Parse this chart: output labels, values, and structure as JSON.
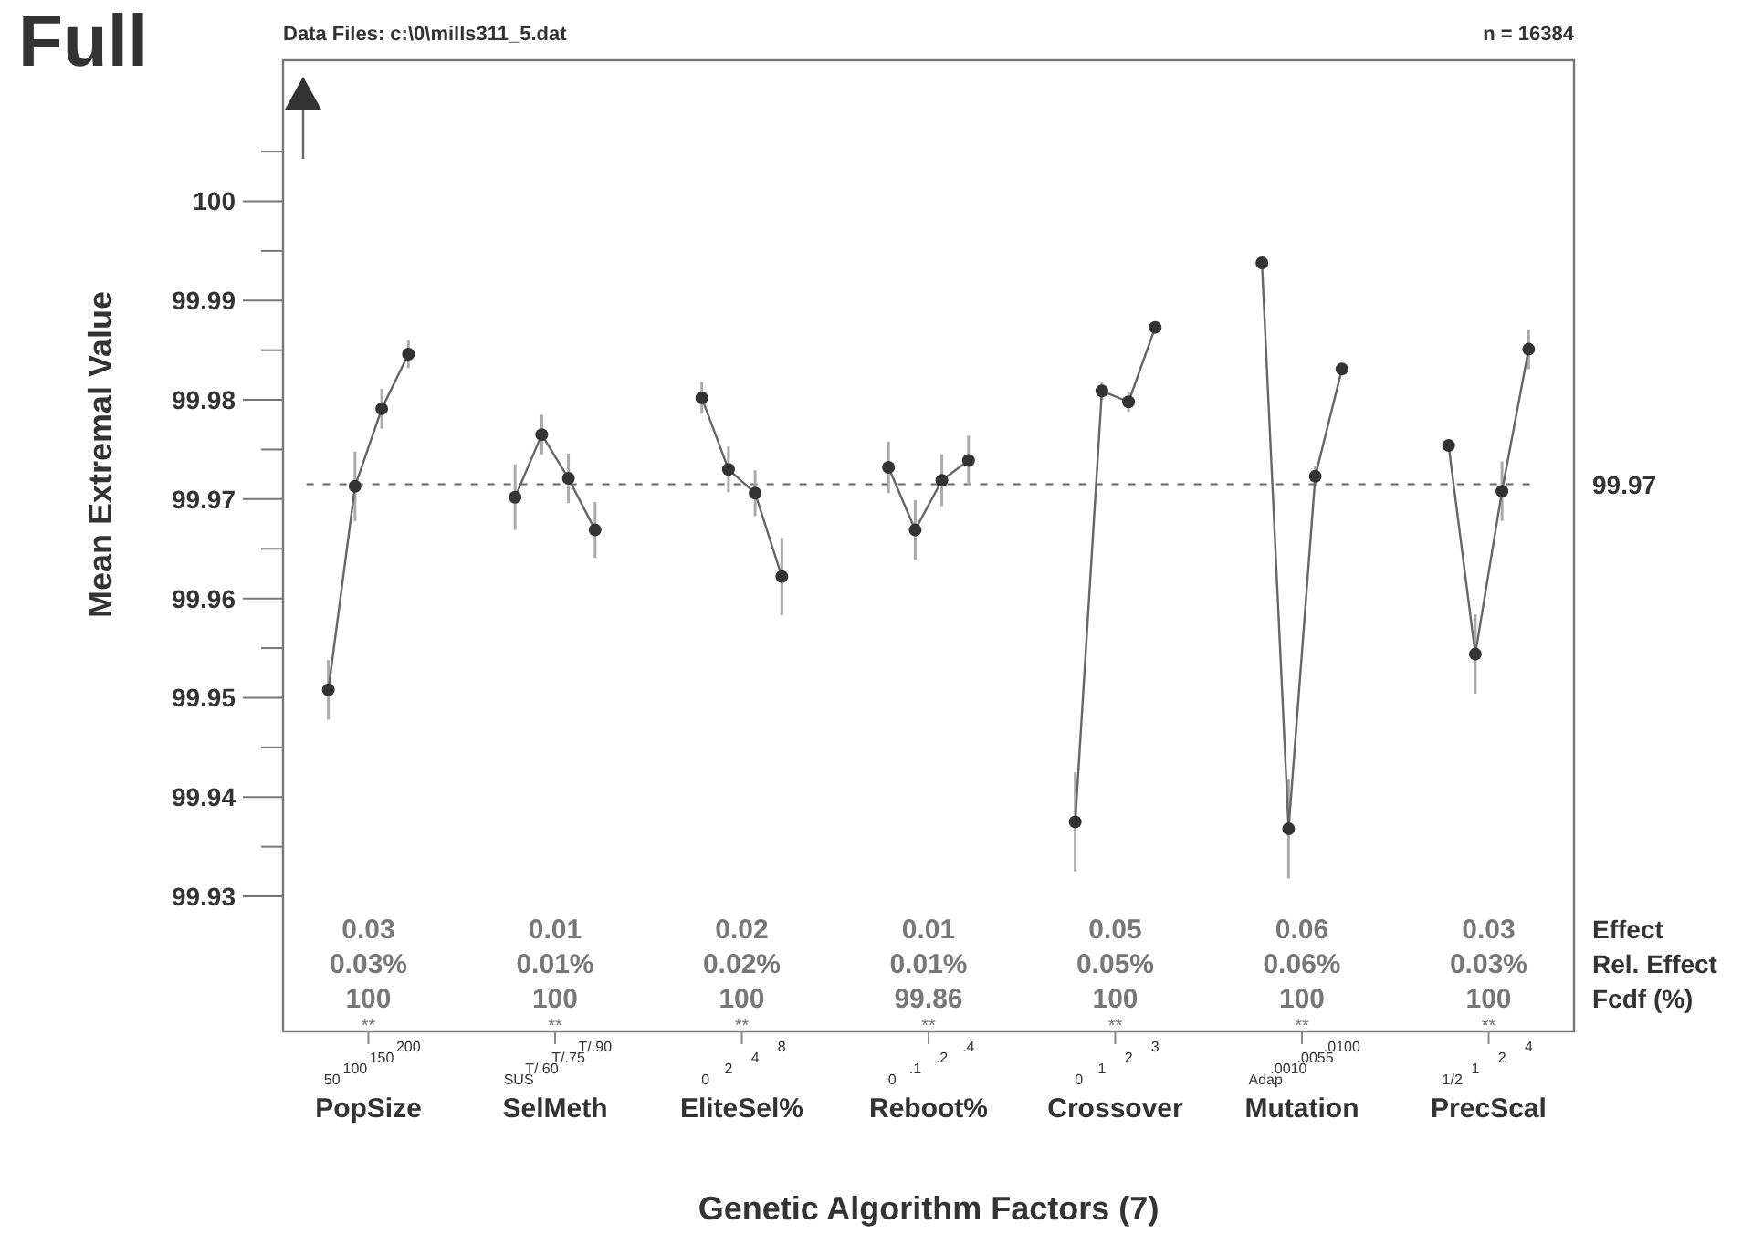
{
  "chart_data": {
    "type": "line",
    "title": "Full",
    "subtitle": "Data Files: c:\\0\\mills311_5.dat",
    "ylabel": "Mean Extremal Value",
    "xlabel": "Genetic Algorithm Factors (7)",
    "categories": [
      "50",
      "100",
      "150",
      "200",
      null,
      null,
      null,
      "SUS",
      "T/.60",
      "T/.75",
      "T/.90",
      null,
      null,
      null,
      "0",
      "2",
      "4",
      "8",
      null,
      null,
      null,
      "0",
      ".1",
      ".2",
      ".4",
      null,
      null,
      null,
      "0",
      "1",
      "2",
      "3",
      null,
      null,
      null,
      "Adap",
      ".0010",
      ".0055",
      ".0100",
      null,
      null,
      null,
      "1/2",
      "1",
      "2",
      "4"
    ],
    "ylim": [
      99.9164,
      100.0142
    ],
    "yticks": [
      99.93,
      {
        "value": 99.935,
        "label": null
      },
      99.94,
      {
        "value": 99.945,
        "label": null
      },
      99.95,
      {
        "value": 99.955,
        "label": null
      },
      99.96,
      {
        "value": 99.965,
        "label": null
      },
      99.97,
      {
        "value": 99.975,
        "label": null
      },
      99.98,
      {
        "value": 99.985,
        "label": null
      },
      99.99,
      {
        "value": 99.995,
        "label": null
      },
      100,
      {
        "value": 100.005,
        "label": null
      }
    ],
    "marker": "circle",
    "line_style": "solid",
    "series": [
      {
        "color": "#333333",
        "values": [
          99.9508,
          99.9713,
          99.9791,
          99.9846,
          null,
          null,
          null,
          null,
          null,
          null,
          null,
          null,
          null,
          null,
          null,
          null,
          null,
          null,
          null,
          null,
          null,
          null,
          null,
          null,
          null,
          null,
          null,
          null,
          null,
          null,
          null,
          null,
          null,
          null,
          null,
          null,
          null,
          null,
          null,
          null,
          null,
          null,
          null,
          null,
          null,
          null
        ],
        "errors": [
          0.003,
          0.0035,
          0.002,
          0.0014,
          null,
          null,
          null,
          null,
          null,
          null,
          null,
          null,
          null,
          null,
          null,
          null,
          null,
          null,
          null,
          null,
          null,
          null,
          null,
          null,
          null,
          null,
          null,
          null,
          null,
          null,
          null,
          null,
          null,
          null,
          null,
          null,
          null,
          null,
          null,
          null,
          null,
          null,
          null,
          null,
          null,
          null
        ]
      },
      {
        "color": "#333333",
        "values": [
          null,
          null,
          null,
          null,
          null,
          null,
          null,
          99.9702,
          99.9765,
          99.9721,
          99.9669,
          null,
          null,
          null,
          null,
          null,
          null,
          null,
          null,
          null,
          null,
          null,
          null,
          null,
          null,
          null,
          null,
          null,
          null,
          null,
          null,
          null,
          null,
          null,
          null,
          null,
          null,
          null,
          null,
          null,
          null,
          null,
          null,
          null,
          null,
          null
        ],
        "errors": [
          null,
          null,
          null,
          null,
          null,
          null,
          null,
          0.0033,
          0.002,
          0.0025,
          0.0028,
          null,
          null,
          null,
          null,
          null,
          null,
          null,
          null,
          null,
          null,
          null,
          null,
          null,
          null,
          null,
          null,
          null,
          null,
          null,
          null,
          null,
          null,
          null,
          null,
          null,
          null,
          null,
          null,
          null,
          null,
          null,
          null,
          null,
          null,
          null
        ]
      },
      {
        "color": "#333333",
        "values": [
          null,
          null,
          null,
          null,
          null,
          null,
          null,
          null,
          null,
          null,
          null,
          null,
          null,
          null,
          99.9802,
          99.973,
          99.9706,
          99.9622,
          null,
          null,
          null,
          null,
          null,
          null,
          null,
          null,
          null,
          null,
          null,
          null,
          null,
          null,
          null,
          null,
          null,
          null,
          null,
          null,
          null,
          null,
          null,
          null,
          null,
          null,
          null,
          null
        ],
        "errors": [
          null,
          null,
          null,
          null,
          null,
          null,
          null,
          null,
          null,
          null,
          null,
          null,
          null,
          null,
          0.0016,
          0.0023,
          0.0023,
          0.0039,
          null,
          null,
          null,
          null,
          null,
          null,
          null,
          null,
          null,
          null,
          null,
          null,
          null,
          null,
          null,
          null,
          null,
          null,
          null,
          null,
          null,
          null,
          null,
          null,
          null,
          null,
          null,
          null
        ]
      },
      {
        "color": "#333333",
        "values": [
          null,
          null,
          null,
          null,
          null,
          null,
          null,
          null,
          null,
          null,
          null,
          null,
          null,
          null,
          null,
          null,
          null,
          null,
          null,
          null,
          null,
          99.9732,
          99.9669,
          99.9719,
          99.9739,
          null,
          null,
          null,
          null,
          null,
          null,
          null,
          null,
          null,
          null,
          null,
          null,
          null,
          null,
          null,
          null,
          null,
          null,
          null,
          null,
          null
        ],
        "errors": [
          null,
          null,
          null,
          null,
          null,
          null,
          null,
          null,
          null,
          null,
          null,
          null,
          null,
          null,
          null,
          null,
          null,
          null,
          null,
          null,
          null,
          0.0026,
          0.003,
          0.0026,
          0.0025,
          null,
          null,
          null,
          null,
          null,
          null,
          null,
          null,
          null,
          null,
          null,
          null,
          null,
          null,
          null,
          null,
          null,
          null,
          null,
          null,
          null
        ]
      },
      {
        "color": "#333333",
        "values": [
          null,
          null,
          null,
          null,
          null,
          null,
          null,
          null,
          null,
          null,
          null,
          null,
          null,
          null,
          null,
          null,
          null,
          null,
          null,
          null,
          null,
          null,
          null,
          null,
          null,
          null,
          null,
          null,
          99.9375,
          99.9809,
          99.9798,
          99.9873,
          null,
          null,
          null,
          null,
          null,
          null,
          null,
          null,
          null,
          null,
          null,
          null,
          null,
          null
        ],
        "errors": [
          null,
          null,
          null,
          null,
          null,
          null,
          null,
          null,
          null,
          null,
          null,
          null,
          null,
          null,
          null,
          null,
          null,
          null,
          null,
          null,
          null,
          null,
          null,
          null,
          null,
          null,
          null,
          null,
          0.005,
          0.0009,
          0.001,
          null,
          null,
          null,
          null,
          null,
          null,
          null,
          null,
          null,
          null,
          null,
          null,
          null,
          null,
          null
        ]
      },
      {
        "color": "#333333",
        "values": [
          null,
          null,
          null,
          null,
          null,
          null,
          null,
          null,
          null,
          null,
          null,
          null,
          null,
          null,
          null,
          null,
          null,
          null,
          null,
          null,
          null,
          null,
          null,
          null,
          null,
          null,
          null,
          null,
          null,
          null,
          null,
          null,
          null,
          null,
          null,
          99.9938,
          99.9368,
          99.9723,
          99.9831,
          null,
          null,
          null,
          null,
          null,
          null,
          null
        ],
        "errors": [
          null,
          null,
          null,
          null,
          null,
          null,
          null,
          null,
          null,
          null,
          null,
          null,
          null,
          null,
          null,
          null,
          null,
          null,
          null,
          null,
          null,
          null,
          null,
          null,
          null,
          null,
          null,
          null,
          null,
          null,
          null,
          null,
          null,
          null,
          null,
          null,
          0.005,
          0.001,
          null,
          null,
          null,
          null,
          null,
          null,
          null,
          null
        ]
      },
      {
        "color": "#333333",
        "values": [
          null,
          null,
          null,
          null,
          null,
          null,
          null,
          null,
          null,
          null,
          null,
          null,
          null,
          null,
          null,
          null,
          null,
          null,
          null,
          null,
          null,
          null,
          null,
          null,
          null,
          null,
          null,
          null,
          null,
          null,
          null,
          null,
          null,
          null,
          null,
          null,
          null,
          null,
          null,
          null,
          null,
          null,
          99.9754,
          99.9544,
          99.9708,
          99.9851
        ],
        "errors": [
          null,
          null,
          null,
          null,
          null,
          null,
          null,
          null,
          null,
          null,
          null,
          null,
          null,
          null,
          null,
          null,
          null,
          null,
          null,
          null,
          null,
          null,
          null,
          null,
          null,
          null,
          null,
          null,
          null,
          null,
          null,
          null,
          null,
          null,
          null,
          null,
          null,
          null,
          null,
          null,
          null,
          null,
          null,
          0.004,
          0.003,
          0.002
        ]
      }
    ],
    "ref_lines": [
      {
        "axis": "y",
        "value": 99.9715,
        "label": "99.97",
        "color": "#666666",
        "line_style": "dashed"
      }
    ],
    "annotations": [
      "n = 16384",
      "Effect",
      "Rel. Effect",
      "Fcdf (%)",
      "PopSize",
      "0.03",
      "0.03%",
      "100",
      "**",
      "SelMeth",
      "0.01",
      "0.01%",
      "100",
      "**",
      "EliteSel%",
      "0.02",
      "0.02%",
      "100",
      "**",
      "Reboot%",
      "0.01",
      "0.01%",
      "99.86",
      "**",
      "Crossover",
      "0.05",
      "0.05%",
      "100",
      "**",
      "Mutation",
      "0.06",
      "0.06%",
      "100",
      "**",
      "PrecScal",
      "0.03",
      "0.03%",
      "100",
      "**"
    ]
  }
}
